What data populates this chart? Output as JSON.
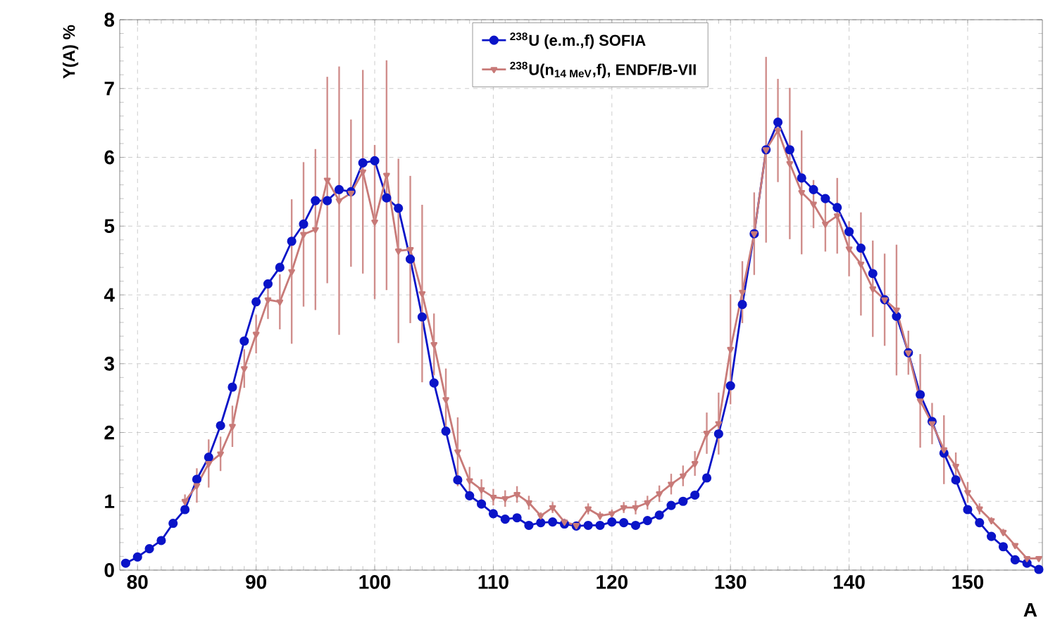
{
  "chart_data": {
    "type": "line",
    "xlabel": "A",
    "ylabel": "Y(A) %",
    "xlim": [
      78.5,
      156.3
    ],
    "ylim": [
      0,
      8
    ],
    "xticks": [
      80,
      90,
      100,
      110,
      120,
      130,
      140,
      150
    ],
    "yticks": [
      0,
      1,
      2,
      3,
      4,
      5,
      6,
      7,
      8
    ],
    "grid": true,
    "legend": "top",
    "line_style": "solid",
    "series": [
      {
        "name": "$^{238}$U (e.m.,f) SOFIA",
        "color": "#0a14c8",
        "marker": "circle",
        "x": [
          79,
          80,
          81,
          82,
          83,
          84,
          85,
          86,
          87,
          88,
          89,
          90,
          91,
          92,
          93,
          94,
          95,
          96,
          97,
          98,
          99,
          100,
          101,
          102,
          103,
          104,
          105,
          106,
          107,
          108,
          109,
          110,
          111,
          112,
          113,
          114,
          115,
          116,
          117,
          118,
          119,
          120,
          121,
          122,
          123,
          124,
          125,
          126,
          127,
          128,
          129,
          130,
          131,
          132,
          133,
          134,
          135,
          136,
          137,
          138,
          139,
          140,
          141,
          142,
          143,
          144,
          145,
          146,
          147,
          148,
          149,
          150,
          151,
          152,
          153,
          154,
          155,
          156
        ],
        "values": [
          0.1,
          0.19,
          0.31,
          0.43,
          0.68,
          0.88,
          1.32,
          1.64,
          2.1,
          2.66,
          3.33,
          3.9,
          4.16,
          4.4,
          4.78,
          5.03,
          5.37,
          5.37,
          5.53,
          5.5,
          5.92,
          5.95,
          5.41,
          5.26,
          4.52,
          3.68,
          2.72,
          2.02,
          1.31,
          1.08,
          0.96,
          0.82,
          0.74,
          0.76,
          0.65,
          0.69,
          0.7,
          0.67,
          0.64,
          0.65,
          0.65,
          0.7,
          0.69,
          0.65,
          0.72,
          0.8,
          0.94,
          1.0,
          1.09,
          1.34,
          1.98,
          2.68,
          3.86,
          4.89,
          6.11,
          6.51,
          6.11,
          5.7,
          5.53,
          5.4,
          5.27,
          4.92,
          4.68,
          4.31,
          3.93,
          3.69,
          3.16,
          2.55,
          2.16,
          1.7,
          1.31,
          0.88,
          0.69,
          0.49,
          0.34,
          0.15,
          0.1,
          0.01
        ]
      },
      {
        "name": "$^{238}$U(n$_{14 MeV}$,f), ENDF/B-VII",
        "color": "#c87a78",
        "marker": "triangle",
        "x": [
          84,
          85,
          86,
          87,
          88,
          89,
          90,
          91,
          92,
          93,
          94,
          95,
          96,
          97,
          98,
          99,
          100,
          101,
          102,
          103,
          104,
          105,
          106,
          107,
          108,
          109,
          110,
          111,
          112,
          113,
          114,
          115,
          116,
          117,
          118,
          119,
          120,
          121,
          122,
          123,
          124,
          125,
          126,
          127,
          128,
          129,
          130,
          131,
          132,
          133,
          134,
          135,
          136,
          137,
          138,
          139,
          140,
          141,
          142,
          143,
          144,
          145,
          146,
          147,
          148,
          149,
          150,
          151,
          152,
          153,
          154,
          155,
          156
        ],
        "values": [
          1.0,
          1.23,
          1.55,
          1.69,
          2.09,
          2.93,
          3.43,
          3.93,
          3.9,
          4.34,
          4.88,
          4.95,
          5.67,
          5.37,
          5.48,
          5.79,
          5.06,
          5.74,
          4.64,
          4.66,
          4.02,
          3.28,
          2.48,
          1.72,
          1.3,
          1.17,
          1.06,
          1.04,
          1.1,
          0.98,
          0.79,
          0.91,
          0.7,
          0.65,
          0.89,
          0.79,
          0.82,
          0.91,
          0.91,
          0.98,
          1.11,
          1.25,
          1.37,
          1.55,
          1.99,
          2.13,
          3.21,
          4.04,
          4.89,
          6.11,
          6.39,
          5.91,
          5.49,
          5.32,
          5.03,
          5.15,
          4.67,
          4.45,
          4.09,
          3.93,
          3.78,
          3.16,
          2.46,
          2.13,
          1.75,
          1.51,
          1.13,
          0.89,
          0.72,
          0.55,
          0.36,
          0.17,
          0.17
        ],
        "errors": [
          0.1,
          0.25,
          0.35,
          0.25,
          0.3,
          0.28,
          0.28,
          0.28,
          0.4,
          1.05,
          1.05,
          1.17,
          1.5,
          1.95,
          1.07,
          1.48,
          1.12,
          1.67,
          1.34,
          1.07,
          1.29,
          0.45,
          0.45,
          0.5,
          0.2,
          0.15,
          0.12,
          0.12,
          0.12,
          0.1,
          0.05,
          0.08,
          0.05,
          0.05,
          0.08,
          0.06,
          0.06,
          0.08,
          0.1,
          0.1,
          0.12,
          0.15,
          0.15,
          0.18,
          0.3,
          0.45,
          0.8,
          0.45,
          0.6,
          1.35,
          0.75,
          1.1,
          0.9,
          0.35,
          0.4,
          0.55,
          0.4,
          0.75,
          0.7,
          0.67,
          0.95,
          0.32,
          0.68,
          0.3,
          0.5,
          0.2,
          0.15,
          0.08,
          0.05,
          0.05,
          0.03,
          0.03,
          0.03
        ]
      }
    ]
  }
}
